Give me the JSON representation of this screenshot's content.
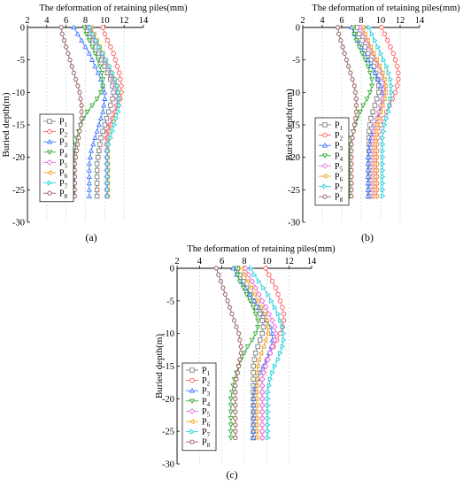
{
  "colors": {
    "P1": "#808080",
    "P2": "#ff5a5a",
    "P3": "#3a78ff",
    "P4": "#33aa33",
    "P5": "#e070e0",
    "P6": "#f0a020",
    "P7": "#20d0e0",
    "P8": "#9a6060"
  },
  "chart_data": [
    {
      "type": "line",
      "panel": "(a)",
      "title": "The deformation of retaining piles(mm)",
      "xlabel": "",
      "ylabel": "Buried depth(m)",
      "xlim": [
        2,
        14
      ],
      "ylim": [
        -30,
        0
      ],
      "xticks": [
        "2",
        "4",
        "6",
        "8",
        "10",
        "12",
        "14"
      ],
      "yticks": [
        "0",
        "-5",
        "-10",
        "-15",
        "-20",
        "-25",
        "-30"
      ],
      "legend_position": "left",
      "depths": [
        0,
        -1,
        -2,
        -3,
        -4,
        -5,
        -6,
        -7,
        -8,
        -9,
        -10,
        -11,
        -12,
        -13,
        -14,
        -15,
        -16,
        -17,
        -18,
        -19,
        -20,
        -21,
        -22,
        -23,
        -24,
        -25,
        -26
      ],
      "series": [
        {
          "name": "P1",
          "key": "P1",
          "values": [
            8.3,
            8.5,
            8.8,
            9.1,
            9.4,
            9.7,
            10.0,
            10.3,
            10.6,
            10.8,
            10.9,
            10.8,
            10.6,
            10.4,
            10.2,
            10.0,
            9.8,
            9.6,
            9.5,
            9.4,
            9.3,
            9.2,
            9.2,
            9.2,
            9.2,
            9.2,
            9.2
          ]
        },
        {
          "name": "P2",
          "key": "P2",
          "values": [
            9.8,
            10.0,
            10.3,
            10.6,
            10.9,
            11.1,
            11.3,
            11.5,
            11.6,
            11.7,
            11.7,
            11.6,
            11.4,
            11.1,
            10.8,
            10.5,
            10.3,
            10.2,
            10.2,
            10.3,
            10.3,
            10.3,
            10.3,
            10.3,
            10.3,
            10.3,
            10.3
          ]
        },
        {
          "name": "P3",
          "key": "P3",
          "values": [
            6.8,
            7.2,
            7.6,
            8.0,
            8.4,
            8.7,
            9.0,
            9.3,
            9.6,
            9.8,
            10.0,
            10.0,
            9.9,
            9.8,
            9.6,
            9.4,
            9.2,
            9.0,
            8.8,
            8.6,
            8.5,
            8.4,
            8.4,
            8.4,
            8.4,
            8.4,
            8.4
          ]
        },
        {
          "name": "P4",
          "key": "P4",
          "values": [
            7.9,
            8.1,
            8.4,
            8.7,
            9.0,
            9.3,
            9.5,
            9.7,
            9.8,
            9.8,
            9.6,
            9.2,
            8.7,
            8.2,
            7.8,
            7.5,
            7.3,
            7.1,
            7.0,
            6.9,
            6.8,
            6.8,
            6.8,
            6.8,
            6.8,
            6.8,
            6.8
          ]
        },
        {
          "name": "P5",
          "key": "P5",
          "values": [
            8.4,
            8.7,
            9.0,
            9.4,
            9.7,
            10.0,
            10.3,
            10.6,
            10.9,
            11.1,
            11.3,
            11.3,
            11.2,
            11.0,
            10.8,
            10.6,
            10.4,
            10.3,
            10.2,
            10.2,
            10.2,
            10.2,
            10.2,
            10.2,
            10.2,
            10.2,
            10.2
          ]
        },
        {
          "name": "P6",
          "key": "P6",
          "values": [
            8.6,
            8.9,
            9.2,
            9.5,
            9.8,
            10.1,
            10.4,
            10.7,
            11.0,
            11.2,
            11.4,
            11.4,
            11.3,
            11.1,
            10.9,
            10.7,
            10.5,
            10.4,
            10.3,
            10.3,
            10.3,
            10.3,
            10.3,
            10.3,
            10.3,
            10.3,
            10.3
          ]
        },
        {
          "name": "P7",
          "key": "P7",
          "values": [
            8.5,
            8.8,
            9.1,
            9.4,
            9.8,
            10.1,
            10.5,
            10.8,
            11.1,
            11.3,
            11.4,
            11.5,
            11.5,
            11.4,
            11.2,
            11.0,
            10.8,
            10.6,
            10.4,
            10.3,
            10.3,
            10.3,
            10.3,
            10.3,
            10.3,
            10.3,
            10.3
          ]
        },
        {
          "name": "P8",
          "key": "P8",
          "values": [
            5.5,
            5.6,
            5.8,
            6.0,
            6.2,
            6.4,
            6.6,
            6.8,
            7.0,
            7.2,
            7.4,
            7.5,
            7.6,
            7.6,
            7.6,
            7.5,
            7.4,
            7.3,
            7.2,
            7.1,
            7.0,
            6.9,
            6.9,
            6.9,
            6.9,
            6.9,
            6.9
          ]
        }
      ]
    },
    {
      "type": "line",
      "panel": "(b)",
      "title": "The deformation of retaining piles(mm)",
      "xlabel": "",
      "ylabel": "Buried depth(mm)",
      "xlim": [
        2,
        14
      ],
      "ylim": [
        -30,
        0
      ],
      "xticks": [
        "2",
        "4",
        "6",
        "8",
        "10",
        "12",
        "14"
      ],
      "yticks": [
        "0",
        "-5",
        "-10",
        "-15",
        "-20",
        "-25",
        "-30"
      ],
      "legend_position": "left",
      "depths": [
        0,
        -1,
        -2,
        -3,
        -4,
        -5,
        -6,
        -7,
        -8,
        -9,
        -10,
        -11,
        -12,
        -13,
        -14,
        -15,
        -16,
        -17,
        -18,
        -19,
        -20,
        -21,
        -22,
        -23,
        -24,
        -25,
        -26
      ],
      "series": [
        {
          "name": "P1",
          "key": "P1",
          "values": [
            7.6,
            7.8,
            8.1,
            8.4,
            8.7,
            9.0,
            9.3,
            9.5,
            9.7,
            9.8,
            9.8,
            9.6,
            9.4,
            9.2,
            9.0,
            8.9,
            8.8,
            8.8,
            8.8,
            8.8,
            8.8,
            8.8,
            8.8,
            8.8,
            8.8,
            8.8,
            8.8
          ]
        },
        {
          "name": "P2",
          "key": "P2",
          "values": [
            10.1,
            10.4,
            10.7,
            11.0,
            11.3,
            11.5,
            11.7,
            11.8,
            11.8,
            11.7,
            11.5,
            11.2,
            10.9,
            10.6,
            10.3,
            10.0,
            9.8,
            9.7,
            9.6,
            9.6,
            9.6,
            9.6,
            9.6,
            9.6,
            9.6,
            9.6,
            9.6
          ]
        },
        {
          "name": "P3",
          "key": "P3",
          "values": [
            7.0,
            7.3,
            7.6,
            8.0,
            8.3,
            8.7,
            9.0,
            9.4,
            9.7,
            10.0,
            10.2,
            10.2,
            10.1,
            9.9,
            9.7,
            9.4,
            9.2,
            9.0,
            8.9,
            8.8,
            8.7,
            8.7,
            8.7,
            8.7,
            8.7,
            8.7,
            8.7
          ]
        },
        {
          "name": "P4",
          "key": "P4",
          "values": [
            7.2,
            7.3,
            7.5,
            7.8,
            8.1,
            8.4,
            8.7,
            8.9,
            9.1,
            9.1,
            8.9,
            8.6,
            8.2,
            7.9,
            7.6,
            7.4,
            7.2,
            7.0,
            6.9,
            6.8,
            6.8,
            6.8,
            6.8,
            6.8,
            6.8,
            6.8,
            6.8
          ]
        },
        {
          "name": "P5",
          "key": "P5",
          "values": [
            8.0,
            8.3,
            8.6,
            8.9,
            9.2,
            9.5,
            9.8,
            10.1,
            10.3,
            10.4,
            10.4,
            10.2,
            10.0,
            9.8,
            9.6,
            9.4,
            9.3,
            9.2,
            9.2,
            9.2,
            9.2,
            9.2,
            9.2,
            9.2,
            9.2,
            9.2,
            9.2
          ]
        },
        {
          "name": "P6",
          "key": "P6",
          "values": [
            8.2,
            8.4,
            8.7,
            9.0,
            9.3,
            9.6,
            9.9,
            10.2,
            10.4,
            10.5,
            10.5,
            10.4,
            10.2,
            10.0,
            9.8,
            9.6,
            9.5,
            9.4,
            9.4,
            9.4,
            9.4,
            9.4,
            9.4,
            9.4,
            9.4,
            9.4,
            9.4
          ]
        },
        {
          "name": "P7",
          "key": "P7",
          "values": [
            8.8,
            9.1,
            9.4,
            9.7,
            10.0,
            10.3,
            10.6,
            10.8,
            11.0,
            11.1,
            11.1,
            11.0,
            10.9,
            10.8,
            10.6,
            10.4,
            10.3,
            10.2,
            10.2,
            10.2,
            10.2,
            10.2,
            10.2,
            10.2,
            10.2,
            10.2,
            10.2
          ]
        },
        {
          "name": "P8",
          "key": "P8",
          "values": [
            5.6,
            5.7,
            5.9,
            6.1,
            6.3,
            6.5,
            6.7,
            6.9,
            7.1,
            7.3,
            7.4,
            7.5,
            7.5,
            7.5,
            7.4,
            7.3,
            7.2,
            7.1,
            7.0,
            7.0,
            7.0,
            7.0,
            7.0,
            7.0,
            7.0,
            7.0,
            7.0
          ]
        }
      ]
    },
    {
      "type": "line",
      "panel": "(c)",
      "title": "The deformation of retaining piles(mm)",
      "xlabel": "",
      "ylabel": "Buried depth(m)",
      "xlim": [
        2,
        14
      ],
      "ylim": [
        -30,
        0
      ],
      "xticks": [
        "2",
        "4",
        "6",
        "8",
        "10",
        "12",
        "14"
      ],
      "yticks": [
        "0",
        "-5",
        "-10",
        "-15",
        "-20",
        "-25",
        "-30"
      ],
      "legend_position": "left",
      "depths": [
        0,
        -1,
        -2,
        -3,
        -4,
        -5,
        -6,
        -7,
        -8,
        -9,
        -10,
        -11,
        -12,
        -13,
        -14,
        -15,
        -16,
        -17,
        -18,
        -19,
        -20,
        -21,
        -22,
        -23,
        -24,
        -25,
        -26
      ],
      "series": [
        {
          "name": "P1",
          "key": "P1",
          "values": [
            7.4,
            7.6,
            7.9,
            8.2,
            8.5,
            8.8,
            9.1,
            9.4,
            9.6,
            9.7,
            9.6,
            9.4,
            9.2,
            9.0,
            8.9,
            8.8,
            8.8,
            8.8,
            8.8,
            8.8,
            8.8,
            8.8,
            8.8,
            8.8,
            8.8,
            8.8,
            8.8
          ]
        },
        {
          "name": "P2",
          "key": "P2",
          "values": [
            9.9,
            10.2,
            10.5,
            10.8,
            11.0,
            11.2,
            11.4,
            11.5,
            11.5,
            11.4,
            11.2,
            10.9,
            10.6,
            10.3,
            10.0,
            9.8,
            9.7,
            9.6,
            9.6,
            9.6,
            9.6,
            9.6,
            9.6,
            9.6,
            9.6,
            9.6,
            9.6
          ]
        },
        {
          "name": "P3",
          "key": "P3",
          "values": [
            7.0,
            7.3,
            7.7,
            8.1,
            8.5,
            8.9,
            9.3,
            9.7,
            10.0,
            10.3,
            10.5,
            10.5,
            10.4,
            10.2,
            10.0,
            9.7,
            9.4,
            9.2,
            9.0,
            8.9,
            8.8,
            8.8,
            8.8,
            8.8,
            8.8,
            8.8,
            8.8
          ]
        },
        {
          "name": "P4",
          "key": "P4",
          "values": [
            7.3,
            7.4,
            7.6,
            7.9,
            8.2,
            8.5,
            8.8,
            9.0,
            9.2,
            9.2,
            9.0,
            8.7,
            8.3,
            8.0,
            7.7,
            7.5,
            7.3,
            7.1,
            7.0,
            6.9,
            6.8,
            6.8,
            6.8,
            6.8,
            6.8,
            6.8,
            6.8
          ]
        },
        {
          "name": "P5",
          "key": "P5",
          "values": [
            8.1,
            8.4,
            8.7,
            9.0,
            9.3,
            9.6,
            9.9,
            10.2,
            10.5,
            10.7,
            10.8,
            10.7,
            10.5,
            10.3,
            10.1,
            9.9,
            9.7,
            9.6,
            9.6,
            9.6,
            9.6,
            9.6,
            9.6,
            9.6,
            9.6,
            9.6,
            9.6
          ]
        },
        {
          "name": "P6",
          "key": "P6",
          "values": [
            7.8,
            8.0,
            8.3,
            8.6,
            8.9,
            9.2,
            9.5,
            9.8,
            10.0,
            10.1,
            10.1,
            9.9,
            9.7,
            9.5,
            9.3,
            9.2,
            9.1,
            9.1,
            9.1,
            9.1,
            9.1,
            9.1,
            9.1,
            9.1,
            9.1,
            9.1,
            9.1
          ]
        },
        {
          "name": "P7",
          "key": "P7",
          "values": [
            8.6,
            8.9,
            9.3,
            9.7,
            10.1,
            10.4,
            10.7,
            11.0,
            11.2,
            11.4,
            11.5,
            11.5,
            11.4,
            11.2,
            11.0,
            10.7,
            10.5,
            10.3,
            10.2,
            10.1,
            10.1,
            10.1,
            10.1,
            10.1,
            10.1,
            10.1,
            10.1
          ]
        },
        {
          "name": "P8",
          "key": "P8",
          "values": [
            5.5,
            5.7,
            5.9,
            6.1,
            6.3,
            6.5,
            6.7,
            6.9,
            7.1,
            7.3,
            7.5,
            7.6,
            7.7,
            7.7,
            7.6,
            7.5,
            7.4,
            7.3,
            7.2,
            7.2,
            7.2,
            7.2,
            7.2,
            7.2,
            7.2,
            7.2,
            7.2
          ]
        }
      ]
    }
  ]
}
